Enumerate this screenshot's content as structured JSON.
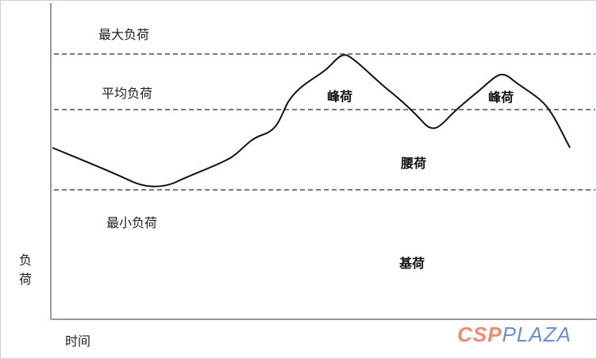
{
  "diagram": {
    "labels": {
      "max_load": "最大负荷",
      "avg_load": "平均负荷",
      "min_load": "最小负荷",
      "peak_1": "峰荷",
      "peak_2": "峰荷",
      "waist_load": "腰荷",
      "base_load": "基荷"
    },
    "y_axis_label": "负荷",
    "x_axis_label": "时间",
    "colors": {
      "curve": "#111111",
      "dashed_lines": "#3d5468",
      "axis": "#999999"
    }
  },
  "watermark": {
    "part1": "CSP",
    "part2": "PLAZA"
  }
}
